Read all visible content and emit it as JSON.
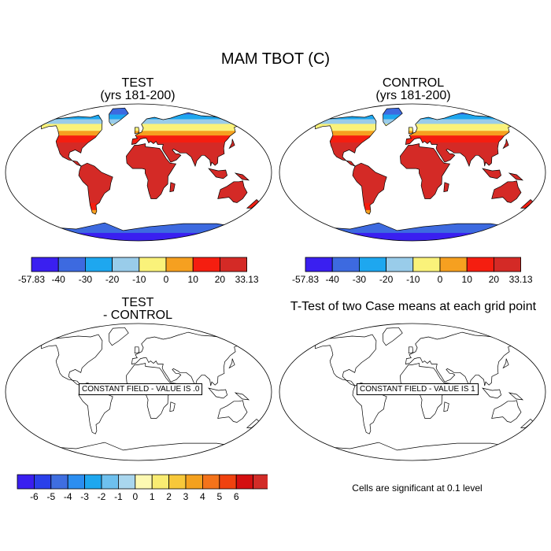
{
  "figure": {
    "title": "MAM TBOT (C)",
    "panels": [
      {
        "id": "test",
        "title_line1": "TEST",
        "title_line2": "(yrs 181-200)"
      },
      {
        "id": "control",
        "title_line1": "CONTROL",
        "title_line2": "(yrs 181-200)"
      },
      {
        "id": "diff",
        "title_line1": "TEST",
        "title_line2": "- CONTROL",
        "annotation": "CONSTANT FIELD - VALUE IS .0"
      },
      {
        "id": "ttest",
        "title_line1": "T-Test of two Case means at each grid point",
        "annotation": "CONSTANT FIELD - VALUE IS 1"
      }
    ],
    "colorbar_main": {
      "colors": [
        "#3a1ff0",
        "#3d6ae0",
        "#1ea7ef",
        "#99ccea",
        "#faf27a",
        "#f6a020",
        "#f51e10",
        "#d42a26"
      ],
      "labels": [
        "-57.83",
        "-40",
        "-30",
        "-20",
        "-10",
        "0",
        "10",
        "20",
        "33.13"
      ]
    },
    "colorbar_diff": {
      "colors": [
        "#3a1ff0",
        "#2a40ea",
        "#3f6ee0",
        "#2b8ef0",
        "#1ea7ef",
        "#6ec0ee",
        "#a9d6ee",
        "#fdf9b2",
        "#f9ec72",
        "#f7c83a",
        "#f4a11e",
        "#f4731a",
        "#f0420f",
        "#d40f10",
        "#d22c28"
      ],
      "labels": [
        "-6",
        "-5",
        "-4",
        "-3",
        "-2",
        "-1",
        "0",
        "1",
        "2",
        "3",
        "4",
        "5",
        "6"
      ]
    },
    "significance_note": "Cells are significant at 0.1 level"
  },
  "colors": {
    "ocean": "#ffffff",
    "land_hot": "#d42a26",
    "outline": "#000000"
  }
}
